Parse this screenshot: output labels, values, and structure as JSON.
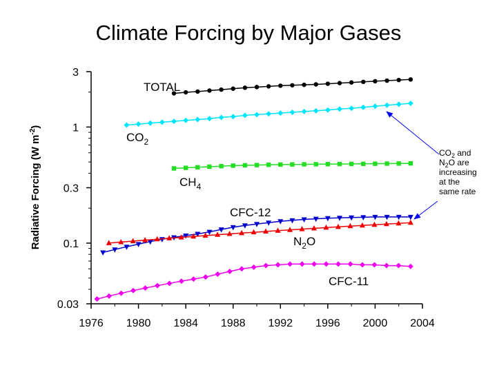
{
  "title": "Climate Forcing by Major Gases",
  "chart_data": {
    "type": "line",
    "title": "Climate Forcing by Major Gases",
    "xlabel": "",
    "ylabel": "Radiative Forcing (W m-2)",
    "ylabel_parts": {
      "base": "Radiative Forcing (W m",
      "sup": "-2",
      "tail": ")"
    },
    "yscale": "log",
    "xlim": [
      1976,
      2004
    ],
    "ylim": [
      0.03,
      3
    ],
    "x_ticks": [
      "1976",
      "1980",
      "1984",
      "1988",
      "1992",
      "1996",
      "2000",
      "2004"
    ],
    "y_ticks": [
      "0.03",
      "0.1",
      "0.3",
      "1",
      "3"
    ],
    "grid": false,
    "legend": "none",
    "series": [
      {
        "name": "TOTAL",
        "label_parts": {
          "base": "TOTAL",
          "sub": "",
          "tail": ""
        },
        "color": "#000000",
        "marker": "circle",
        "x_start": 1983,
        "x_end": 2003,
        "values": [
          1.95,
          1.99,
          2.02,
          2.06,
          2.1,
          2.14,
          2.18,
          2.21,
          2.24,
          2.27,
          2.29,
          2.31,
          2.33,
          2.36,
          2.39,
          2.42,
          2.45,
          2.48,
          2.51,
          2.54,
          2.57
        ]
      },
      {
        "name": "CO2",
        "label_parts": {
          "base": "CO",
          "sub": "2",
          "tail": ""
        },
        "color": "#00e5ff",
        "marker": "diamond",
        "x_start": 1979,
        "x_end": 2003,
        "values": [
          1.04,
          1.06,
          1.08,
          1.1,
          1.12,
          1.14,
          1.16,
          1.18,
          1.21,
          1.23,
          1.26,
          1.28,
          1.3,
          1.32,
          1.34,
          1.36,
          1.38,
          1.4,
          1.43,
          1.45,
          1.48,
          1.51,
          1.54,
          1.57,
          1.6
        ]
      },
      {
        "name": "CH4",
        "label_parts": {
          "base": "CH",
          "sub": "4",
          "tail": ""
        },
        "color": "#22dd22",
        "marker": "square",
        "x_start": 1983,
        "x_end": 2003,
        "values": [
          0.44,
          0.445,
          0.45,
          0.455,
          0.46,
          0.465,
          0.468,
          0.47,
          0.473,
          0.475,
          0.476,
          0.477,
          0.478,
          0.479,
          0.48,
          0.481,
          0.482,
          0.483,
          0.484,
          0.485,
          0.486
        ]
      },
      {
        "name": "CFC-12",
        "label_parts": {
          "base": "CFC-12",
          "sub": "",
          "tail": ""
        },
        "color": "#0000cc",
        "marker": "triangle-down",
        "x_start": 1977,
        "x_end": 2003,
        "values": [
          0.083,
          0.088,
          0.093,
          0.098,
          0.103,
          0.108,
          0.112,
          0.116,
          0.12,
          0.125,
          0.131,
          0.137,
          0.142,
          0.146,
          0.15,
          0.154,
          0.157,
          0.16,
          0.162,
          0.164,
          0.165,
          0.166,
          0.167,
          0.168,
          0.168,
          0.168,
          0.168
        ]
      },
      {
        "name": "N2O",
        "label_parts": {
          "base": "N",
          "sub": "2",
          "tail": "O"
        },
        "color": "#ee0000",
        "marker": "triangle-up",
        "x_start": 1977.5,
        "x_end": 2003,
        "values": [
          0.1,
          0.102,
          0.104,
          0.106,
          0.108,
          0.11,
          0.112,
          0.114,
          0.116,
          0.118,
          0.12,
          0.122,
          0.124,
          0.126,
          0.128,
          0.13,
          0.132,
          0.134,
          0.136,
          0.138,
          0.14,
          0.142,
          0.144,
          0.146,
          0.148,
          0.15
        ]
      },
      {
        "name": "CFC-11",
        "label_parts": {
          "base": "CFC-11",
          "sub": "",
          "tail": ""
        },
        "color": "#ee00ee",
        "marker": "diamond",
        "x_start": 1976.5,
        "x_end": 2003,
        "values": [
          0.033,
          0.035,
          0.037,
          0.039,
          0.041,
          0.043,
          0.045,
          0.047,
          0.049,
          0.051,
          0.054,
          0.057,
          0.06,
          0.062,
          0.064,
          0.065,
          0.066,
          0.066,
          0.066,
          0.066,
          0.066,
          0.066,
          0.065,
          0.065,
          0.064,
          0.064,
          0.063
        ]
      }
    ],
    "annotation": {
      "lines": [
        [
          {
            "text": "CO"
          },
          {
            "text": "2",
            "sub": true
          },
          {
            "text": " and"
          }
        ],
        [
          {
            "text": "N"
          },
          {
            "text": "2",
            "sub": true
          },
          {
            "text": "O are"
          }
        ],
        [
          {
            "text": "increasing"
          }
        ],
        [
          {
            "text": "at the"
          }
        ],
        [
          {
            "text": "same rate"
          }
        ]
      ],
      "arrow_targets": [
        "CO2",
        "N2O"
      ],
      "color": "#0000ff"
    }
  }
}
